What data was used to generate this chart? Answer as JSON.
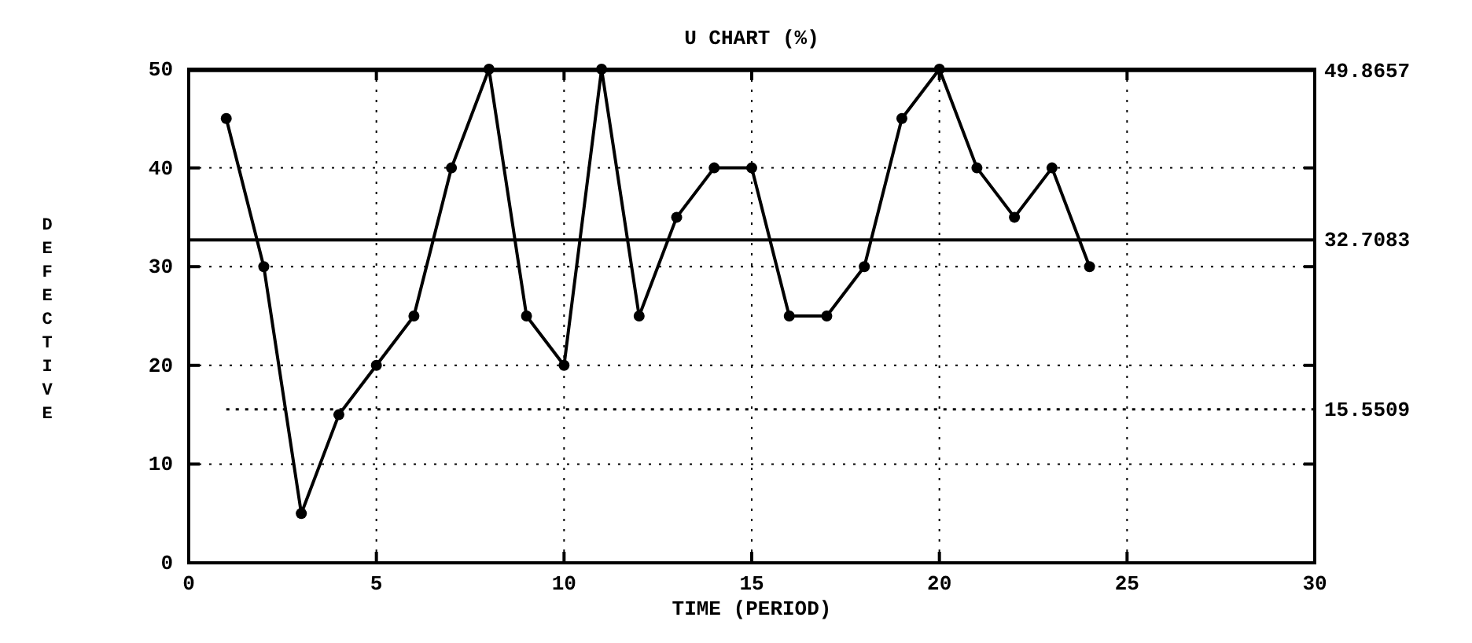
{
  "chart_data": {
    "type": "line",
    "title": "U CHART (%)",
    "xlabel": "TIME (PERIOD)",
    "ylabel": "DEFECTIVE",
    "x": [
      1,
      2,
      3,
      4,
      5,
      6,
      7,
      8,
      9,
      10,
      11,
      12,
      13,
      14,
      15,
      16,
      17,
      18,
      19,
      20,
      21,
      22,
      23,
      24
    ],
    "values": [
      45,
      30,
      5,
      15,
      20,
      25,
      40,
      50,
      25,
      20,
      50,
      25,
      35,
      40,
      40,
      25,
      25,
      30,
      45,
      50,
      40,
      35,
      40,
      30
    ],
    "color": "#000000",
    "marker": "circle",
    "line_style": "solid",
    "xlim": [
      0,
      30
    ],
    "xticks": [
      0,
      5,
      10,
      15,
      20,
      25,
      30
    ],
    "ylim": [
      0,
      50
    ],
    "yticks": [
      0,
      10,
      20,
      30,
      40,
      50
    ],
    "grid": true,
    "ref_lines": [
      {
        "axis": "y",
        "value": 49.8657,
        "label": "49.8657",
        "line_style": "solid"
      },
      {
        "axis": "y",
        "value": 32.7083,
        "label": "32.7083",
        "line_style": "solid"
      },
      {
        "axis": "y",
        "value": 15.5509,
        "label": "15.5509",
        "line_style": "dotted"
      }
    ]
  }
}
